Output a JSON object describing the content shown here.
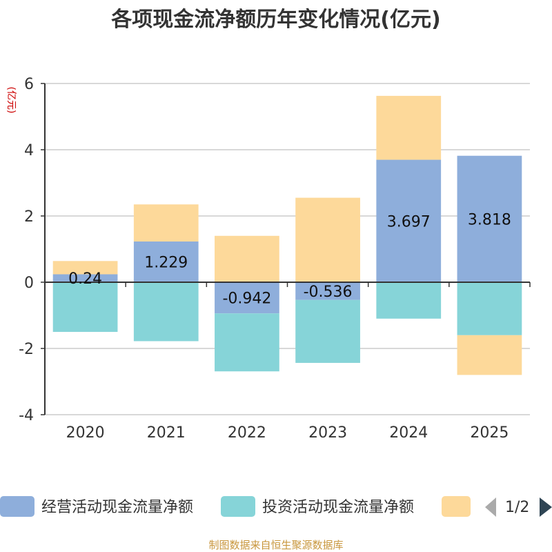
{
  "chart_data": {
    "type": "bar",
    "stacked": true,
    "title": "各项现金流净额历年变化情况(亿元)",
    "ylabel": "(亿元)",
    "ylim": [
      -4,
      6
    ],
    "yticks": [
      -4,
      -2,
      0,
      2,
      4,
      6
    ],
    "grid": true,
    "categories": [
      "2020",
      "2021",
      "2022",
      "2023",
      "2024",
      "2025"
    ],
    "series": [
      {
        "name": "经营活动现金流量净额",
        "color": "#8eaedb",
        "values": [
          0.24,
          1.229,
          -0.942,
          -0.536,
          3.697,
          3.818
        ],
        "labels": [
          "0.24",
          "1.229",
          "-0.942",
          "-0.536",
          "3.697",
          "3.818"
        ]
      },
      {
        "name": "投资活动现金流量净额",
        "color": "#86d4d8",
        "values": [
          -1.5,
          -1.78,
          -1.75,
          -1.9,
          -1.1,
          -1.6
        ]
      },
      {
        "name": "",
        "color": "#fdd99a",
        "values": [
          0.4,
          1.12,
          1.4,
          2.55,
          1.93,
          -1.2
        ]
      }
    ],
    "legend": {
      "position": "bottom",
      "page": "1/2"
    },
    "source": "制图数据来自恒生聚源数据库"
  },
  "colors": {
    "axis": "#333333",
    "grid": "#cccccc",
    "unit": "#cc0000",
    "source": "#c8963c",
    "pager_active": "#2f4554",
    "pager_inactive": "#aaaaaa"
  }
}
